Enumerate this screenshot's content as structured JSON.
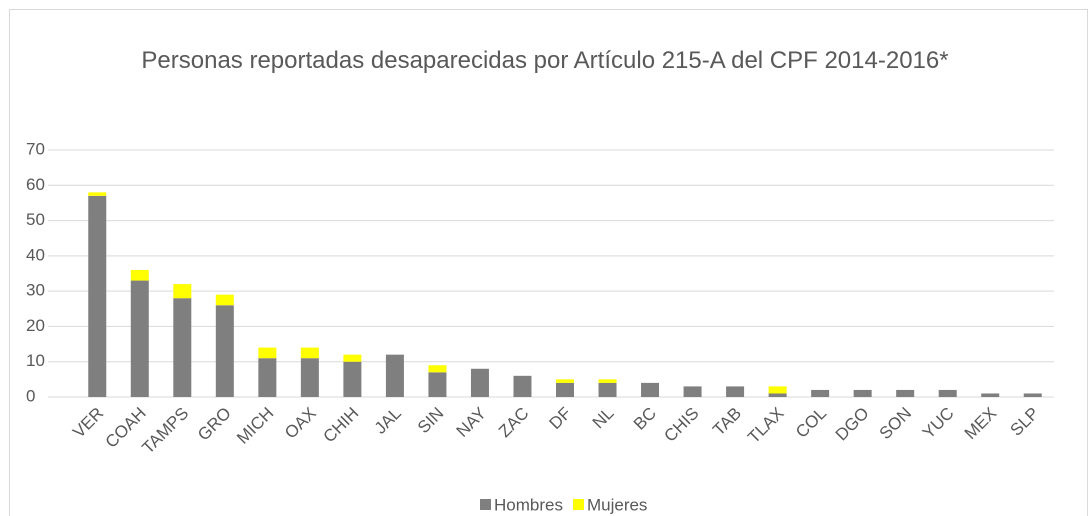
{
  "chart_data": {
    "type": "stacked_bar",
    "title": "Personas reportadas desaparecidas por Artículo 215-A del CPF 2014-2016*",
    "categories": [
      "VER",
      "COAH",
      "TAMPS",
      "GRO",
      "MICH",
      "OAX",
      "CHIH",
      "JAL",
      "SIN",
      "NAY",
      "ZAC",
      "DF",
      "NL",
      "BC",
      "CHIS",
      "TAB",
      "TLAX",
      "COL",
      "DGO",
      "SON",
      "YUC",
      "MEX",
      "SLP"
    ],
    "series": [
      {
        "name": "Hombres",
        "color": "#7f7f7f",
        "values": [
          57,
          33,
          28,
          26,
          11,
          11,
          10,
          12,
          7,
          8,
          6,
          4,
          4,
          4,
          3,
          3,
          1,
          2,
          2,
          2,
          2,
          1,
          1
        ]
      },
      {
        "name": "Mujeres",
        "color": "#ffff00",
        "values": [
          1,
          3,
          4,
          3,
          3,
          3,
          2,
          0,
          2,
          0,
          0,
          1,
          1,
          0,
          0,
          0,
          2,
          0,
          0,
          0,
          0,
          0,
          0
        ]
      }
    ],
    "ylim": [
      0,
      70
    ],
    "yticks": [
      0,
      10,
      20,
      30,
      40,
      50,
      60,
      70
    ],
    "grid": true,
    "legend": "bottom"
  }
}
